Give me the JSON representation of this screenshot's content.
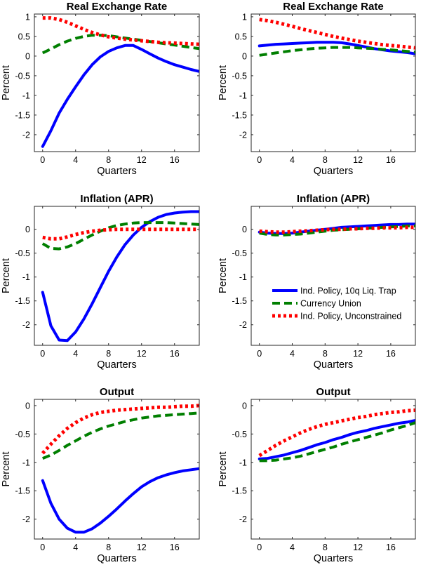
{
  "chart_data": [
    {
      "type": "line",
      "title": "Real Exchange Rate",
      "xlabel": "Quarters",
      "ylabel": "Percent",
      "xlim": [
        -1,
        19
      ],
      "ylim": [
        -2.43,
        1.07
      ],
      "xticks": [
        0,
        4,
        8,
        12,
        16
      ],
      "yticks": [
        1,
        0.5,
        0,
        -0.5,
        -1,
        -1.5,
        -2
      ],
      "ytick_labels": [
        "1",
        "0.5",
        "0",
        "-0.5",
        "-1",
        "-1.5",
        "-2"
      ],
      "x": [
        0,
        1,
        2,
        3,
        4,
        5,
        6,
        7,
        8,
        9,
        10,
        11,
        12,
        13,
        14,
        15,
        16,
        17,
        18,
        19
      ],
      "series": [
        {
          "name": "Ind. Policy, 10q Liq. Trap",
          "values": [
            -2.3,
            -1.9,
            -1.45,
            -1.1,
            -0.78,
            -0.48,
            -0.22,
            -0.02,
            0.12,
            0.21,
            0.27,
            0.27,
            0.17,
            0.06,
            -0.05,
            -0.14,
            -0.22,
            -0.28,
            -0.34,
            -0.39
          ]
        },
        {
          "name": "Currency Union",
          "values": [
            0.08,
            0.18,
            0.29,
            0.38,
            0.45,
            0.5,
            0.53,
            0.53,
            0.52,
            0.49,
            0.46,
            0.43,
            0.4,
            0.37,
            0.34,
            0.31,
            0.28,
            0.25,
            0.22,
            0.19
          ]
        },
        {
          "name": "Ind. Policy, Unconstrained",
          "values": [
            0.97,
            0.97,
            0.93,
            0.86,
            0.77,
            0.68,
            0.6,
            0.54,
            0.49,
            0.46,
            0.43,
            0.41,
            0.39,
            0.37,
            0.35,
            0.34,
            0.33,
            0.32,
            0.31,
            0.3
          ]
        }
      ]
    },
    {
      "type": "line",
      "title": "Real Exchange Rate",
      "xlabel": "Quarters",
      "ylabel": "Percent",
      "xlim": [
        -1,
        19
      ],
      "ylim": [
        -2.43,
        1.07
      ],
      "xticks": [
        0,
        4,
        8,
        12,
        16
      ],
      "yticks": [
        1,
        0.5,
        0,
        -0.5,
        -1,
        -1.5,
        -2
      ],
      "ytick_labels": [
        "1",
        "0.5",
        "0",
        "-0.5",
        "-1",
        "-1.5",
        "-2"
      ],
      "x": [
        0,
        1,
        2,
        3,
        4,
        5,
        6,
        7,
        8,
        9,
        10,
        11,
        12,
        13,
        14,
        15,
        16,
        17,
        18,
        19
      ],
      "series": [
        {
          "name": "Ind. Policy, 10q Liq. Trap",
          "values": [
            0.26,
            0.28,
            0.3,
            0.31,
            0.32,
            0.33,
            0.34,
            0.35,
            0.35,
            0.35,
            0.34,
            0.31,
            0.27,
            0.23,
            0.19,
            0.16,
            0.13,
            0.11,
            0.09,
            0.06
          ]
        },
        {
          "name": "Currency Union",
          "values": [
            0.02,
            0.05,
            0.08,
            0.11,
            0.14,
            0.16,
            0.18,
            0.2,
            0.21,
            0.22,
            0.22,
            0.22,
            0.21,
            0.2,
            0.19,
            0.17,
            0.16,
            0.14,
            0.12,
            0.1
          ]
        },
        {
          "name": "Ind. Policy, Unconstrained",
          "values": [
            0.93,
            0.9,
            0.86,
            0.81,
            0.76,
            0.7,
            0.65,
            0.6,
            0.55,
            0.5,
            0.46,
            0.42,
            0.38,
            0.35,
            0.32,
            0.29,
            0.27,
            0.25,
            0.23,
            0.21
          ]
        }
      ]
    },
    {
      "type": "line",
      "title": "Inflation (APR)",
      "xlabel": "Quarters",
      "ylabel": "Percent",
      "xlim": [
        -1,
        19
      ],
      "ylim": [
        -2.43,
        0.48
      ],
      "xticks": [
        0,
        4,
        8,
        12,
        16
      ],
      "yticks": [
        0,
        -0.5,
        -1,
        -1.5,
        -2
      ],
      "ytick_labels": [
        "0",
        "-0.5",
        "-1",
        "-1.5",
        "-2"
      ],
      "x": [
        0,
        1,
        2,
        3,
        4,
        5,
        6,
        7,
        8,
        9,
        10,
        11,
        12,
        13,
        14,
        15,
        16,
        17,
        18,
        19
      ],
      "series": [
        {
          "name": "Ind. Policy, 10q Liq. Trap",
          "values": [
            -1.32,
            -2.02,
            -2.32,
            -2.33,
            -2.15,
            -1.88,
            -1.56,
            -1.22,
            -0.88,
            -0.58,
            -0.32,
            -0.12,
            0.04,
            0.16,
            0.25,
            0.31,
            0.34,
            0.36,
            0.37,
            0.37
          ]
        },
        {
          "name": "Currency Union",
          "values": [
            -0.3,
            -0.4,
            -0.41,
            -0.37,
            -0.3,
            -0.21,
            -0.12,
            -0.04,
            0.03,
            0.08,
            0.11,
            0.13,
            0.14,
            0.14,
            0.14,
            0.14,
            0.13,
            0.12,
            0.11,
            0.1
          ]
        },
        {
          "name": "Ind. Policy, Unconstrained",
          "values": [
            -0.17,
            -0.2,
            -0.2,
            -0.16,
            -0.11,
            -0.07,
            -0.04,
            -0.02,
            -0.01,
            0,
            0,
            0,
            0,
            0,
            0,
            0,
            0,
            0,
            0,
            0
          ]
        }
      ]
    },
    {
      "type": "line",
      "title": "Inflation (APR)",
      "xlabel": "Quarters",
      "ylabel": "Percent",
      "xlim": [
        -1,
        19
      ],
      "ylim": [
        -2.43,
        0.48
      ],
      "xticks": [
        0,
        4,
        8,
        12,
        16
      ],
      "yticks": [
        0,
        -0.5,
        -1,
        -1.5,
        -2
      ],
      "ytick_labels": [
        "0",
        "-0.5",
        "-1",
        "-1.5",
        "-2"
      ],
      "x": [
        0,
        1,
        2,
        3,
        4,
        5,
        6,
        7,
        8,
        9,
        10,
        11,
        12,
        13,
        14,
        15,
        16,
        17,
        18,
        19
      ],
      "series": [
        {
          "name": "Ind. Policy, 10q Liq. Trap",
          "values": [
            -0.06,
            -0.08,
            -0.09,
            -0.09,
            -0.08,
            -0.06,
            -0.04,
            -0.02,
            0,
            0.02,
            0.04,
            0.05,
            0.06,
            0.07,
            0.08,
            0.09,
            0.1,
            0.1,
            0.11,
            0.11
          ]
        },
        {
          "name": "Currency Union",
          "values": [
            -0.08,
            -0.11,
            -0.12,
            -0.12,
            -0.11,
            -0.1,
            -0.08,
            -0.06,
            -0.04,
            -0.02,
            -0.01,
            0,
            0.01,
            0.02,
            0.03,
            0.04,
            0.05,
            0.06,
            0.07,
            0.07
          ]
        },
        {
          "name": "Ind. Policy, Unconstrained",
          "values": [
            -0.04,
            -0.05,
            -0.06,
            -0.06,
            -0.05,
            -0.04,
            -0.03,
            -0.02,
            -0.01,
            0,
            0,
            0.01,
            0.01,
            0.02,
            0.02,
            0.03,
            0.03,
            0.03,
            0.04,
            0.04
          ]
        }
      ],
      "legend": {
        "placement": "lower-right",
        "entries": [
          "Ind. Policy, 10q Liq. Trap",
          "Currency Union",
          "Ind. Policy, Unconstrained"
        ]
      }
    },
    {
      "type": "line",
      "title": "Output",
      "xlabel": "Quarters",
      "ylabel": "Percent",
      "xlim": [
        -1,
        19
      ],
      "ylim": [
        -2.35,
        0.11
      ],
      "xticks": [
        0,
        4,
        8,
        12,
        16
      ],
      "yticks": [
        0,
        -0.5,
        -1,
        -1.5,
        -2
      ],
      "ytick_labels": [
        "0",
        "-0.5",
        "-1",
        "-1.5",
        "-2"
      ],
      "x": [
        0,
        1,
        2,
        3,
        4,
        5,
        6,
        7,
        8,
        9,
        10,
        11,
        12,
        13,
        14,
        15,
        16,
        17,
        18,
        19
      ],
      "series": [
        {
          "name": "Ind. Policy, 10q Liq. Trap",
          "values": [
            -1.32,
            -1.72,
            -2.0,
            -2.16,
            -2.23,
            -2.23,
            -2.17,
            -2.07,
            -1.95,
            -1.82,
            -1.68,
            -1.55,
            -1.43,
            -1.34,
            -1.27,
            -1.22,
            -1.18,
            -1.15,
            -1.13,
            -1.11
          ]
        },
        {
          "name": "Currency Union",
          "values": [
            -0.93,
            -0.87,
            -0.79,
            -0.7,
            -0.62,
            -0.54,
            -0.47,
            -0.41,
            -0.36,
            -0.32,
            -0.28,
            -0.25,
            -0.22,
            -0.2,
            -0.18,
            -0.17,
            -0.16,
            -0.15,
            -0.14,
            -0.13
          ]
        },
        {
          "name": "Ind. Policy, Unconstrained",
          "values": [
            -0.84,
            -0.68,
            -0.53,
            -0.4,
            -0.3,
            -0.22,
            -0.16,
            -0.12,
            -0.1,
            -0.08,
            -0.07,
            -0.06,
            -0.05,
            -0.04,
            -0.03,
            -0.03,
            -0.02,
            -0.01,
            -0.01,
            0.0
          ]
        }
      ]
    },
    {
      "type": "line",
      "title": "Output",
      "xlabel": "Quarters",
      "ylabel": "Percent",
      "xlim": [
        -1,
        19
      ],
      "ylim": [
        -2.35,
        0.11
      ],
      "xticks": [
        0,
        4,
        8,
        12,
        16
      ],
      "yticks": [
        0,
        -0.5,
        -1,
        -1.5,
        -2
      ],
      "ytick_labels": [
        "0",
        "-0.5",
        "-1",
        "-1.5",
        "-2"
      ],
      "x": [
        0,
        1,
        2,
        3,
        4,
        5,
        6,
        7,
        8,
        9,
        10,
        11,
        12,
        13,
        14,
        15,
        16,
        17,
        18,
        19
      ],
      "series": [
        {
          "name": "Ind. Policy, 10q Liq. Trap",
          "values": [
            -0.94,
            -0.93,
            -0.9,
            -0.87,
            -0.83,
            -0.79,
            -0.74,
            -0.69,
            -0.65,
            -0.6,
            -0.56,
            -0.51,
            -0.47,
            -0.44,
            -0.4,
            -0.37,
            -0.34,
            -0.31,
            -0.29,
            -0.26
          ]
        },
        {
          "name": "Currency Union",
          "values": [
            -0.97,
            -0.97,
            -0.96,
            -0.94,
            -0.92,
            -0.89,
            -0.85,
            -0.81,
            -0.77,
            -0.73,
            -0.68,
            -0.64,
            -0.6,
            -0.56,
            -0.52,
            -0.48,
            -0.43,
            -0.39,
            -0.35,
            -0.3
          ]
        },
        {
          "name": "Ind. Policy, Unconstrained",
          "values": [
            -0.88,
            -0.79,
            -0.7,
            -0.62,
            -0.55,
            -0.48,
            -0.42,
            -0.37,
            -0.33,
            -0.3,
            -0.27,
            -0.24,
            -0.21,
            -0.19,
            -0.16,
            -0.14,
            -0.12,
            -0.11,
            -0.09,
            -0.08
          ]
        }
      ]
    }
  ],
  "styles": {
    "series_colors": [
      "#0000ff",
      "#007f00",
      "#ff0000"
    ],
    "series_dash": [
      "solid",
      "dashed",
      "dotted"
    ]
  }
}
